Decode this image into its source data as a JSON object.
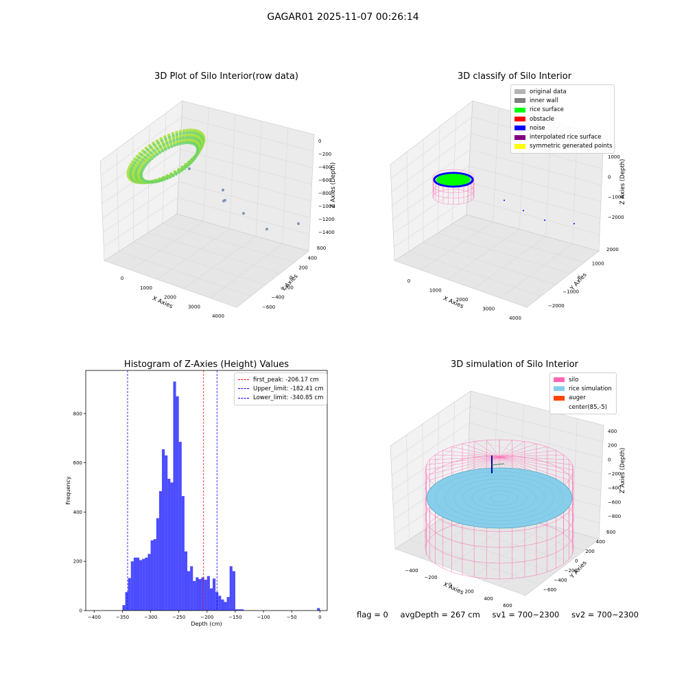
{
  "figure": {
    "title": "GAGAR01 2025-11-07 00:26:14"
  },
  "panels": {
    "raw": {
      "title": "3D Plot of Silo Interior(row data)",
      "xlabel": "X Axies",
      "ylabel": "Y Axies",
      "zlabel": "Z Axies (Depth)",
      "xticks": [
        "0",
        "1000",
        "2000",
        "3000",
        "4000"
      ],
      "yticks": [
        "600",
        "400",
        "200",
        "0",
        "−200",
        "−400",
        "−600"
      ],
      "zticks": [
        "0",
        "−200",
        "−400",
        "−600",
        "−800",
        "−1000",
        "−1200",
        "−1400"
      ],
      "colors": {
        "ring": "#a8e034",
        "ring2": "#6fd46a",
        "outlier": "#7f95b8"
      }
    },
    "classify": {
      "title": "3D classify of Silo Interior",
      "xlabel": "X Axies",
      "ylabel": "Y Axies",
      "zlabel": "Z Axies (Depth)",
      "xticks": [
        "0",
        "1000",
        "2000",
        "3000",
        "4000"
      ],
      "yticks": [
        "2000",
        "1000",
        "0",
        "−1000",
        "−2000"
      ],
      "zticks": [
        "1000",
        "0",
        "−1000",
        "−2000"
      ],
      "legend": [
        {
          "label": "original data",
          "color": "#b3b3b3"
        },
        {
          "label": "inner wall",
          "color": "#808080"
        },
        {
          "label": "rice surface",
          "color": "#00ff00"
        },
        {
          "label": "obstacle",
          "color": "#ff0000"
        },
        {
          "label": "noise",
          "color": "#0000ff"
        },
        {
          "label": "interpolated rice surface",
          "color": "#800080"
        },
        {
          "label": "symmetric generated points",
          "color": "#ffff00"
        }
      ]
    },
    "simulation": {
      "title": "3D simulation of Silo Interior",
      "xlabel": "X Axies",
      "ylabel": "Y Axies",
      "zlabel": "Z Axies (Depth)",
      "xticks": [
        "−400",
        "−200",
        "0",
        "200",
        "400",
        "600"
      ],
      "yticks": [
        "600",
        "400",
        "200",
        "0",
        "−200",
        "−400",
        "−600"
      ],
      "zticks": [
        "400",
        "200",
        "0",
        "−200",
        "−400",
        "−600",
        "−800"
      ],
      "legend": [
        {
          "label": "silo",
          "color": "#ff69b4"
        },
        {
          "label": "rice simulation",
          "color": "#87ceeb"
        },
        {
          "label": "auger",
          "color": "#ff4500"
        },
        {
          "label": "center(85,-5)",
          "color": ""
        }
      ]
    }
  },
  "chart_data": [
    {
      "type": "bar",
      "title": "Histogram of Z-Axies (Height) Values",
      "xlabel": "Depth (cm)",
      "ylabel": "Frequency",
      "xlim": [
        -415,
        13
      ],
      "ylim": [
        0,
        975
      ],
      "xticks": [
        -400,
        -350,
        -300,
        -250,
        -200,
        -150,
        -100,
        -50,
        0
      ],
      "yticks": [
        0,
        200,
        400,
        600,
        800
      ],
      "bar_color": "#0000ff",
      "bin_width": 5,
      "bins_left": [
        -350,
        -345,
        -340,
        -335,
        -330,
        -325,
        -320,
        -315,
        -310,
        -305,
        -300,
        -295,
        -290,
        -285,
        -280,
        -275,
        -270,
        -265,
        -260,
        -255,
        -250,
        -245,
        -240,
        -235,
        -230,
        -225,
        -220,
        -215,
        -210,
        -205,
        -200,
        -195,
        -190,
        -185,
        -180,
        -175,
        -170,
        -165,
        -160,
        -155,
        -150,
        -145,
        -140,
        -135,
        -130,
        -125,
        -120,
        -115,
        -110,
        -105,
        -100,
        -95,
        -90,
        -85,
        -80,
        -75,
        -70,
        -65,
        -60,
        -55,
        -50,
        -45,
        -40,
        -35,
        -30,
        -25,
        -20,
        -15,
        -10,
        -5
      ],
      "values": [
        22,
        75,
        132,
        200,
        215,
        215,
        205,
        210,
        215,
        230,
        285,
        290,
        375,
        485,
        655,
        630,
        535,
        520,
        930,
        870,
        685,
        465,
        240,
        160,
        180,
        120,
        135,
        128,
        135,
        125,
        140,
        90,
        130,
        75,
        60,
        45,
        35,
        55,
        180,
        160,
        5,
        5,
        5,
        0,
        0,
        0,
        0,
        0,
        0,
        0,
        0,
        0,
        0,
        0,
        0,
        0,
        0,
        0,
        0,
        0,
        0,
        0,
        0,
        0,
        0,
        0,
        0,
        0,
        0,
        10
      ],
      "vlines": [
        {
          "x": -206.17,
          "label": "first_peak: -206.17 cm",
          "color": "#ff0000"
        },
        {
          "x": -182.41,
          "label": "Upper_limit: -182.41 cm",
          "color": "#0000ff"
        },
        {
          "x": -340.85,
          "label": "Lower_limit: -340.85 cm",
          "color": "#0000ff"
        }
      ],
      "legend_position": "top-right"
    }
  ],
  "status": {
    "flag": "flag = 0",
    "avg_depth": "avgDepth = 267 cm",
    "sv1": "sv1 = 700~2300",
    "sv2": "sv2 = 700~2300"
  }
}
